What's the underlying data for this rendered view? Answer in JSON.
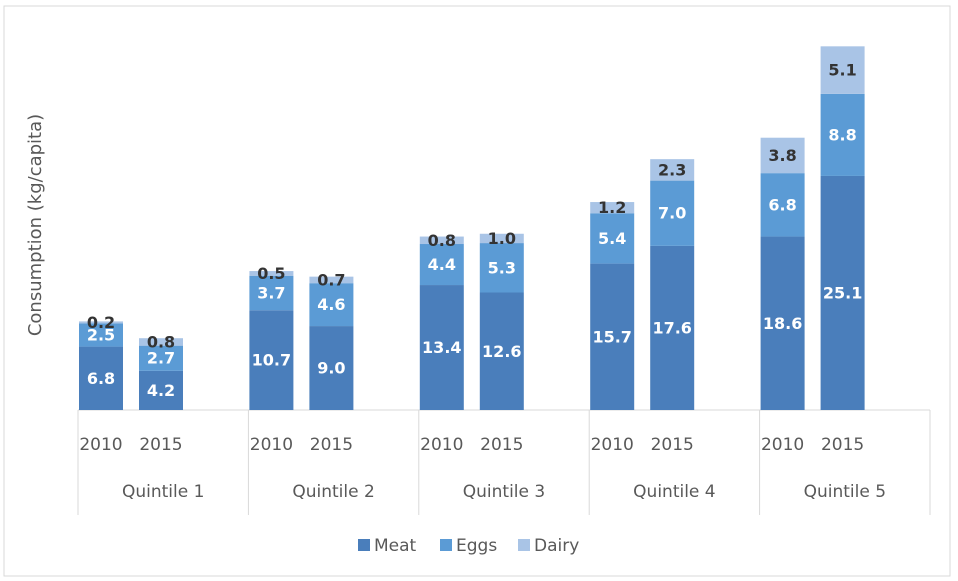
{
  "chart_data": {
    "type": "stacked_bar",
    "y_label": "Consumption (kg/capita)",
    "groups": [
      "Quintile 1",
      "Quintile 2",
      "Quintile 3",
      "Quintile 4",
      "Quintile 5"
    ],
    "categories": [
      "2010",
      "2015",
      "2010",
      "2015",
      "2010",
      "2015",
      "2010",
      "2015",
      "2010",
      "2015"
    ],
    "series": [
      {
        "name": "Meat",
        "color": "#4a7ebb",
        "values": [
          6.8,
          4.2,
          10.7,
          9.0,
          13.4,
          12.6,
          15.7,
          17.6,
          18.6,
          25.1
        ],
        "value_labels": [
          "6.8",
          "4.2",
          "10.7",
          "9.0",
          "13.4",
          "12.6",
          "15.7",
          "17.6",
          "18.6",
          "25.1"
        ]
      },
      {
        "name": "Eggs",
        "color": "#5b9bd5",
        "values": [
          2.5,
          2.7,
          3.7,
          4.6,
          4.4,
          5.3,
          5.4,
          7.0,
          6.8,
          8.8
        ],
        "value_labels": [
          "2.5",
          "2.7",
          "3.7",
          "4.6",
          "4.4",
          "5.3",
          "5.4",
          "7.0",
          "6.8",
          "8.8"
        ]
      },
      {
        "name": "Dairy",
        "color": "#a9c4e6",
        "values": [
          0.2,
          0.8,
          0.5,
          0.7,
          0.8,
          1.0,
          1.2,
          2.3,
          3.8,
          5.1
        ],
        "value_labels": [
          "0.2",
          "0.8",
          "0.5",
          "0.7",
          "0.8",
          "1.0",
          "1.2",
          "2.3",
          "3.8",
          "5.1"
        ]
      }
    ],
    "ylim": [
      0,
      40
    ],
    "legend": "bottom"
  }
}
